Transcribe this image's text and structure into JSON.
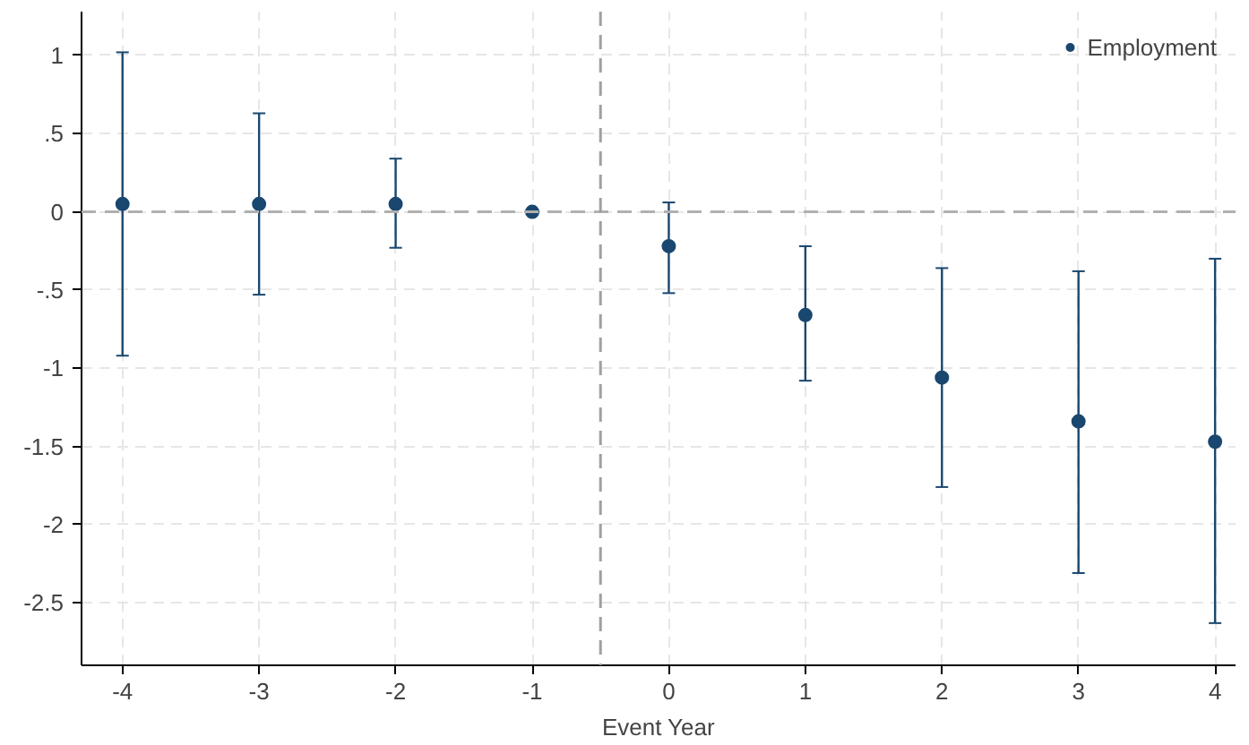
{
  "chart_data": {
    "type": "scatter",
    "xlabel": "Event Year",
    "x": [
      -4,
      -3,
      -2,
      -1,
      0,
      1,
      2,
      3,
      4
    ],
    "series": [
      {
        "name": "Employment",
        "color": "#1a476f",
        "values": [
          0.05,
          0.05,
          0.05,
          0,
          -0.22,
          -0.66,
          -1.06,
          -1.34,
          -1.47
        ],
        "errors": [
          [
            -0.92,
            1.02
          ],
          [
            -0.53,
            0.63
          ],
          [
            -0.23,
            0.34
          ],
          null,
          [
            -0.52,
            0.06
          ],
          [
            -1.08,
            -0.22
          ],
          [
            -1.76,
            -0.36
          ],
          [
            -2.31,
            -0.38
          ],
          [
            -2.63,
            -0.3
          ]
        ]
      }
    ],
    "xlim": [
      -4.3,
      4.15
    ],
    "ylim": [
      -2.9,
      1.28
    ],
    "xticks": [
      -4,
      -3,
      -2,
      -1,
      0,
      1,
      2,
      3,
      4
    ],
    "yticks": [
      1,
      {
        "value": 0.5,
        "label": ".5"
      },
      0,
      {
        "value": -0.5,
        "label": "-.5"
      },
      -1,
      {
        "value": -1.5,
        "label": "-1.5"
      },
      -2,
      {
        "value": -2.5,
        "label": "-2.5"
      }
    ],
    "ref_lines": [
      {
        "axis": "y",
        "value": 0,
        "color": "#b0b0b0",
        "line_style": "dashed"
      },
      {
        "axis": "x",
        "value": -0.5,
        "color": "#a0a0a0",
        "line_style": "dashed"
      }
    ],
    "grid": true,
    "legend": "top right",
    "marker": "circle"
  }
}
